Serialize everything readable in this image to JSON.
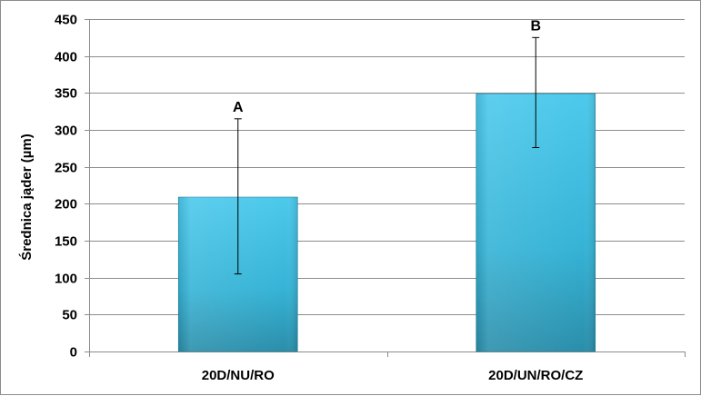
{
  "chart_data": {
    "type": "bar",
    "title": "",
    "xlabel": "",
    "ylabel": "Średnica jąder (µm)",
    "ylim": [
      0,
      450
    ],
    "yticks": [
      0,
      50,
      100,
      150,
      200,
      250,
      300,
      350,
      400,
      450
    ],
    "grid": true,
    "legend": "none",
    "categories": [
      "20D/NU/RO",
      "20D/UN/RO/CZ"
    ],
    "series": [
      {
        "values": [
          209,
          349
        ],
        "error_low": [
          105,
          276
        ],
        "error_high": [
          315,
          425
        ],
        "labels": [
          "A",
          "B"
        ]
      }
    ],
    "colors": {
      "bar_top": "#4cc9ec",
      "bar_mid": "#35b3d6",
      "bar_bottom": "#2a8eaa",
      "bar_edge": "#267f99",
      "grid": "#8c8c8c",
      "axis": "#8c8c8c"
    }
  }
}
